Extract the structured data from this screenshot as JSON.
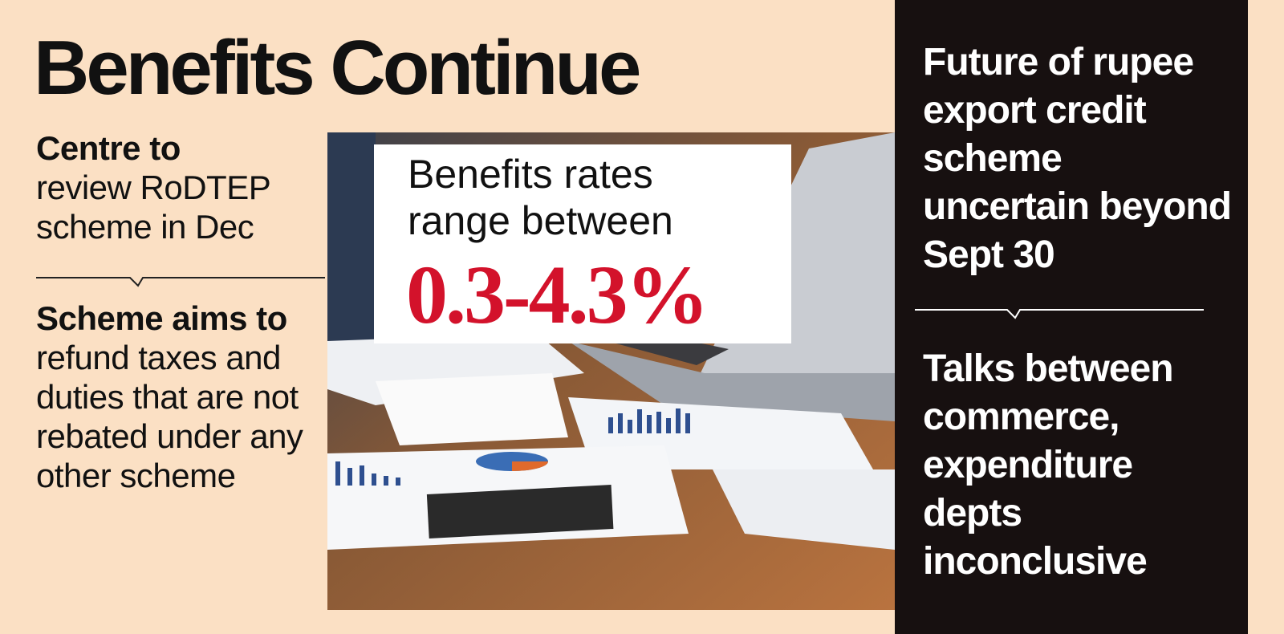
{
  "header": {
    "title": "Benefits Continue"
  },
  "left": {
    "blocks": [
      {
        "bold": "Centre to",
        "text": "review RoDTEP scheme in Dec"
      },
      {
        "bold": "Scheme aims to",
        "text": "refund taxes and duties that are not rebated under any other scheme"
      }
    ]
  },
  "callout": {
    "text": "Benefits rates range between",
    "highlight": "0.3-4.3%"
  },
  "right": {
    "blocks": [
      {
        "text": "Future of rupee export credit scheme uncertain beyond Sept 30"
      },
      {
        "text": "Talks between commerce, expenditure depts inconclusive"
      }
    ]
  }
}
